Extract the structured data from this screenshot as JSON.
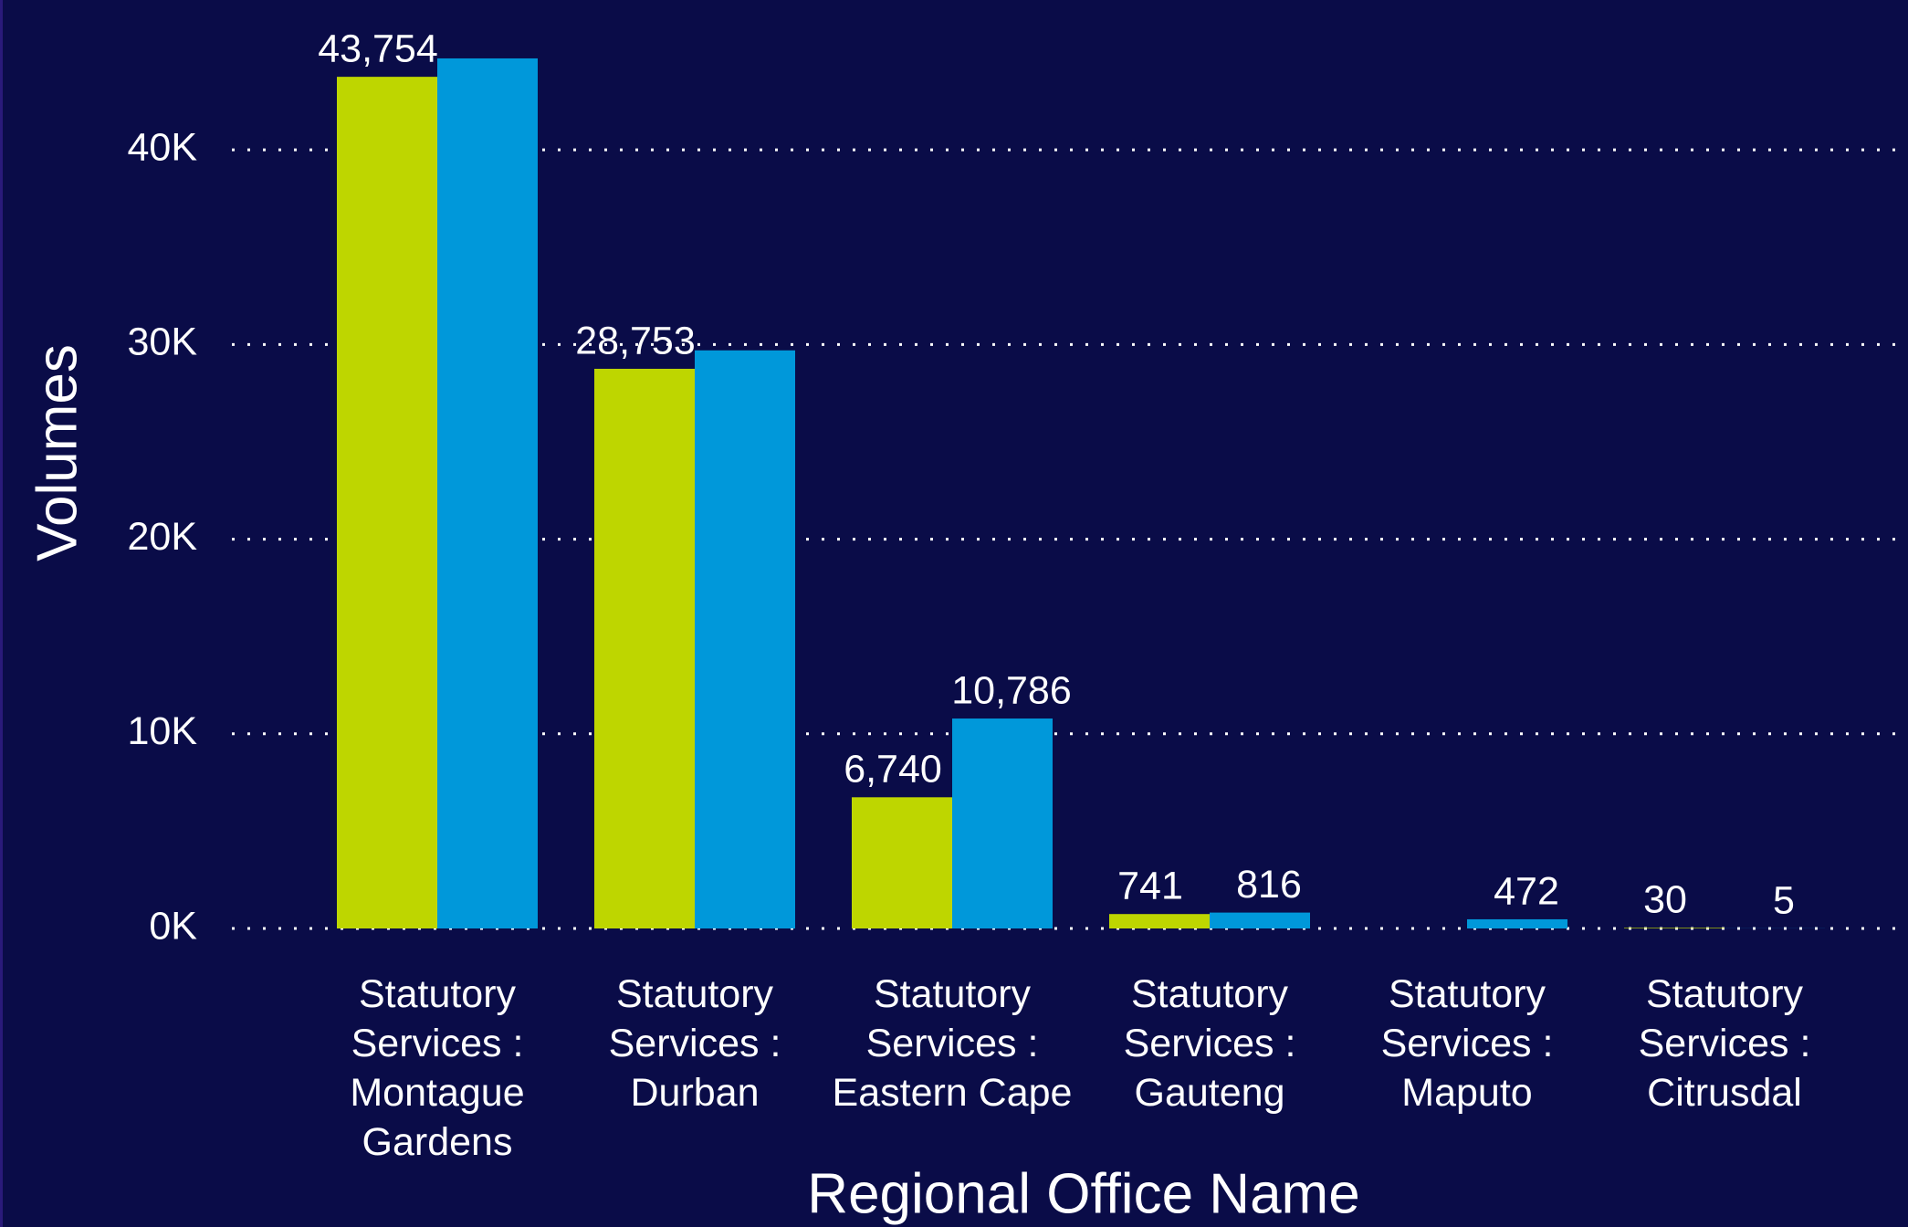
{
  "chart_data": {
    "type": "bar",
    "x_label": "Regional Office Name",
    "y_label": "Volumes",
    "categories": [
      "Statutory Services : Montague Gardens",
      "Statutory Services : Durban",
      "Statutory Services : Eastern Cape",
      "Statutory Services : Gauteng",
      "Statutory Services : Maputo",
      "Statutory Services : Citrusdal"
    ],
    "series": [
      {
        "color": "#bed600",
        "values": [
          43754,
          28753,
          6740,
          741,
          null,
          30
        ],
        "value_labels": [
          "43,754",
          "28,753",
          "6,740",
          "741",
          null,
          "30"
        ]
      },
      {
        "color": "#0098da",
        "values": [
          44700,
          29700,
          10786,
          816,
          472,
          5
        ],
        "value_labels": [
          null,
          null,
          "10,786",
          "816",
          "472",
          "5"
        ]
      }
    ],
    "ylim": [
      0,
      47700
    ],
    "yticks": [
      {
        "value": 0,
        "label": "0K"
      },
      {
        "value": 10000,
        "label": "10K"
      },
      {
        "value": 20000,
        "label": "20K"
      },
      {
        "value": 30000,
        "label": "30K"
      },
      {
        "value": 40000,
        "label": "40K"
      }
    ],
    "grid": true
  }
}
